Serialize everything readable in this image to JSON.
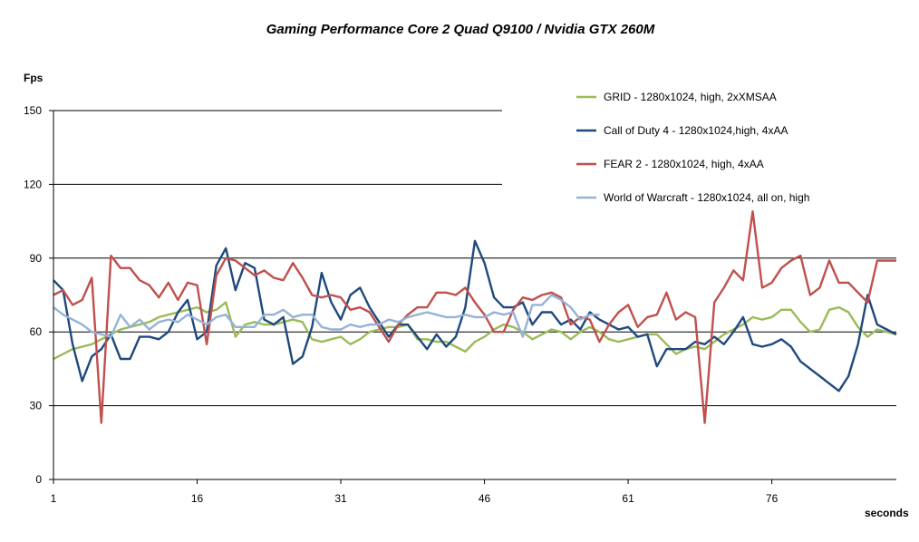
{
  "chart_data": {
    "type": "line",
    "title": "Gaming Performance Core 2 Quad Q9100 / Nvidia GTX 260M",
    "ylabel": "Fps",
    "xlabel": "seconds",
    "ylim": [
      0,
      150
    ],
    "yticks": [
      0,
      30,
      60,
      90,
      120,
      150
    ],
    "xlim": [
      1,
      89
    ],
    "xticks": [
      1,
      16,
      31,
      46,
      61,
      76
    ],
    "grid": "horizontal",
    "legend_position": "top-right",
    "series": [
      {
        "name": "GRID - 1280x1024,  high, 2xXMSAA",
        "color": "#9bbb59",
        "x": [
          1,
          2,
          3,
          4,
          5,
          6,
          7,
          8,
          9,
          10,
          11,
          12,
          13,
          14,
          15,
          16,
          17,
          18,
          19,
          20,
          21,
          22,
          23,
          24,
          25,
          26,
          27,
          28,
          29,
          30,
          31,
          32,
          33,
          34,
          35,
          36,
          37,
          38,
          39,
          40,
          41,
          42,
          43,
          44,
          45,
          46,
          47,
          48,
          49,
          50,
          51,
          52,
          53,
          54,
          55,
          56,
          57,
          58,
          59,
          60,
          61,
          62,
          63,
          64,
          65,
          66,
          67,
          68,
          69,
          70,
          71,
          72,
          73,
          74,
          75,
          76,
          77,
          78,
          79,
          80,
          81,
          82,
          83,
          84,
          85,
          86,
          87,
          88,
          89
        ],
        "y": [
          49,
          51,
          53,
          54,
          55,
          57,
          59,
          61,
          62,
          63,
          64,
          66,
          67,
          68,
          69,
          70,
          68,
          69,
          72,
          58,
          63,
          64,
          63,
          63,
          64,
          65,
          64,
          57,
          56,
          57,
          58,
          55,
          57,
          60,
          61,
          62,
          62,
          63,
          57,
          57,
          56,
          56,
          54,
          52,
          56,
          58,
          61,
          63,
          62,
          60,
          57,
          59,
          61,
          60,
          57,
          60,
          62,
          60,
          57,
          56,
          57,
          58,
          59,
          59,
          55,
          51,
          53,
          54,
          53,
          56,
          59,
          61,
          63,
          66,
          65,
          66,
          69,
          69,
          64,
          60,
          61,
          69,
          70,
          68,
          62,
          58,
          61,
          60,
          59
        ]
      },
      {
        "name": "Call of Duty 4 - 1280x1024,high,  4xAA",
        "color": "#1f497d",
        "x": [
          1,
          2,
          3,
          4,
          5,
          6,
          7,
          8,
          9,
          10,
          11,
          12,
          13,
          14,
          15,
          16,
          17,
          18,
          19,
          20,
          21,
          22,
          23,
          24,
          25,
          26,
          27,
          28,
          29,
          30,
          31,
          32,
          33,
          34,
          35,
          36,
          37,
          38,
          39,
          40,
          41,
          42,
          43,
          44,
          45,
          46,
          47,
          48,
          49,
          50,
          51,
          52,
          53,
          54,
          55,
          56,
          57,
          58,
          59,
          60,
          61,
          62,
          63,
          64,
          65,
          66,
          67,
          68,
          69,
          70,
          71,
          72,
          73,
          74,
          75,
          76,
          77,
          78,
          79,
          80,
          81,
          82,
          83,
          84,
          85,
          86,
          87,
          88,
          89
        ],
        "y": [
          81,
          77,
          55,
          40,
          50,
          53,
          59,
          49,
          49,
          58,
          58,
          57,
          60,
          68,
          73,
          57,
          60,
          87,
          94,
          77,
          88,
          86,
          65,
          63,
          66,
          47,
          50,
          62,
          84,
          72,
          65,
          75,
          78,
          70,
          64,
          58,
          63,
          63,
          58,
          53,
          59,
          54,
          58,
          70,
          97,
          88,
          74,
          70,
          70,
          72,
          63,
          68,
          68,
          63,
          65,
          61,
          68,
          65,
          63,
          61,
          62,
          58,
          59,
          46,
          53,
          53,
          53,
          56,
          55,
          58,
          55,
          60,
          66,
          55,
          54,
          55,
          57,
          54,
          48,
          45,
          42,
          39,
          36,
          42,
          55,
          75,
          63,
          61,
          59
        ]
      },
      {
        "name": "FEAR 2 - 1280x1024,  high, 4xAA",
        "color": "#c0504d",
        "x": [
          1,
          2,
          3,
          4,
          5,
          6,
          7,
          8,
          9,
          10,
          11,
          12,
          13,
          14,
          15,
          16,
          17,
          18,
          19,
          20,
          21,
          22,
          23,
          24,
          25,
          26,
          27,
          28,
          29,
          30,
          31,
          32,
          33,
          34,
          35,
          36,
          37,
          38,
          39,
          40,
          41,
          42,
          43,
          44,
          45,
          46,
          47,
          48,
          49,
          50,
          51,
          52,
          53,
          54,
          55,
          56,
          57,
          58,
          59,
          60,
          61,
          62,
          63,
          64,
          65,
          66,
          67,
          68,
          69,
          70,
          71,
          72,
          73,
          74,
          75,
          76,
          77,
          78,
          79,
          80,
          81,
          82,
          83,
          84,
          85,
          86,
          87,
          88,
          89
        ],
        "y": [
          75,
          77,
          71,
          73,
          82,
          23,
          91,
          86,
          86,
          81,
          79,
          74,
          80,
          73,
          80,
          79,
          55,
          83,
          90,
          89,
          86,
          83,
          85,
          82,
          81,
          88,
          82,
          75,
          74,
          75,
          74,
          69,
          70,
          68,
          62,
          56,
          63,
          67,
          70,
          70,
          76,
          76,
          75,
          78,
          72,
          67,
          60,
          60,
          69,
          74,
          73,
          75,
          76,
          74,
          63,
          66,
          65,
          56,
          63,
          68,
          71,
          62,
          66,
          67,
          76,
          65,
          68,
          66,
          23,
          72,
          78,
          85,
          81,
          109,
          78,
          80,
          86,
          89,
          91,
          75,
          78,
          89,
          80,
          80,
          76,
          72,
          89,
          89,
          89
        ]
      },
      {
        "name": "World of Warcraft - 1280x1024,  all on, high",
        "color": "#95b3d7",
        "x": [
          1,
          2,
          3,
          4,
          5,
          6,
          7,
          8,
          9,
          10,
          11,
          12,
          13,
          14,
          15,
          16,
          17,
          18,
          19,
          20,
          21,
          22,
          23,
          24,
          25,
          26,
          27,
          28,
          29,
          30,
          31,
          32,
          33,
          34,
          35,
          36,
          37,
          38,
          39,
          40,
          41,
          42,
          43,
          44,
          45,
          46,
          47,
          48,
          49,
          50,
          51,
          52,
          53,
          54,
          55,
          56,
          57,
          58
        ],
        "y": [
          70,
          67,
          65,
          63,
          60,
          59,
          58,
          67,
          62,
          65,
          61,
          64,
          65,
          64,
          67,
          65,
          63,
          66,
          67,
          62,
          62,
          62,
          67,
          67,
          69,
          66,
          67,
          67,
          62,
          61,
          61,
          63,
          62,
          63,
          63,
          65,
          64,
          66,
          67,
          68,
          67,
          66,
          66,
          67,
          66,
          66,
          68,
          67,
          68,
          58,
          71,
          71,
          75,
          73,
          70,
          65,
          67,
          67
        ]
      }
    ]
  }
}
